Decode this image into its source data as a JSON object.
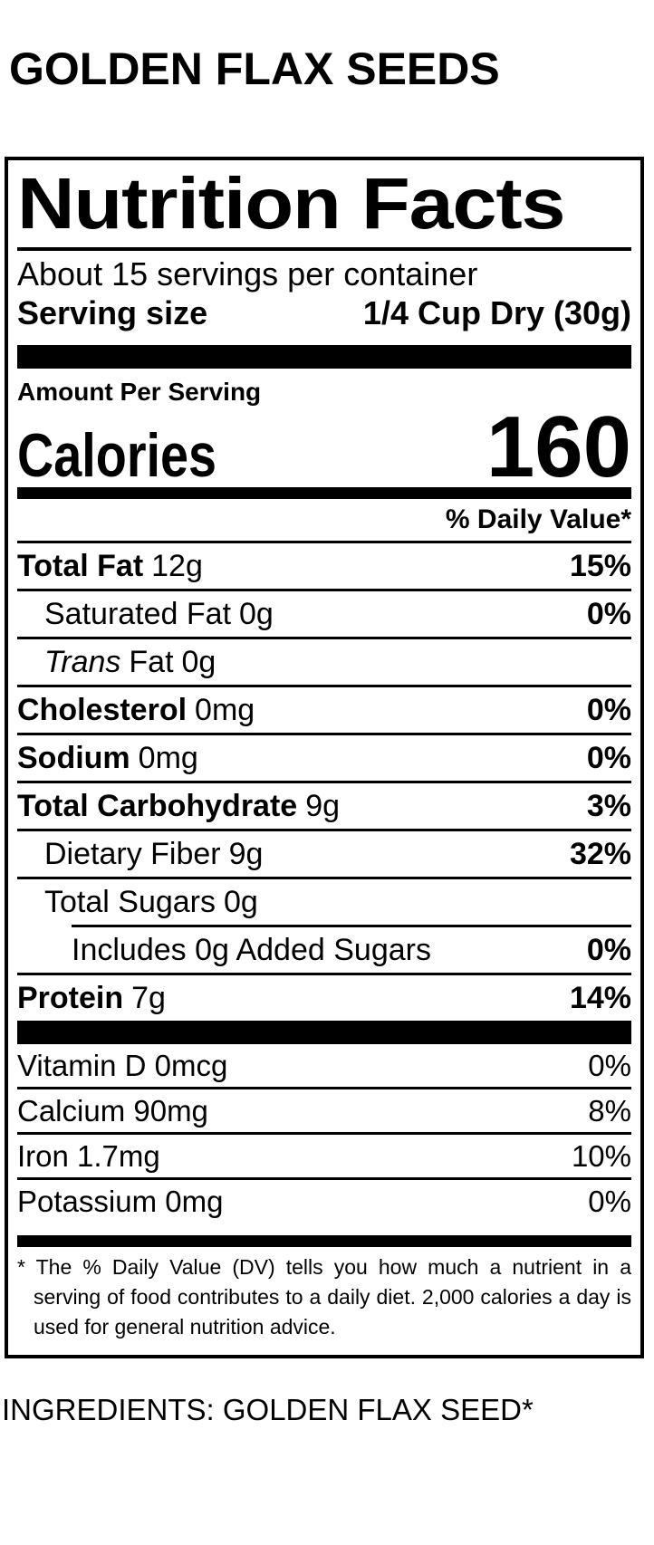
{
  "product": {
    "title": "GOLDEN FLAX SEEDS"
  },
  "label": {
    "title": "Nutrition Facts",
    "servings_per_container": "About 15 servings per container",
    "serving_size_label": "Serving size",
    "serving_size_value": "1/4 Cup Dry (30g)",
    "amount_per_serving": "Amount Per Serving",
    "calories_label": "Calories",
    "calories_value": "160",
    "daily_value_header": "% Daily Value*",
    "nutrients": [
      {
        "name": "Total Fat",
        "amount": "12g",
        "dv": "15%"
      },
      {
        "name": "Saturated Fat",
        "amount": "0g",
        "dv": "0%"
      },
      {
        "name_italic": "Trans",
        "name": "Fat",
        "amount": "0g",
        "dv": ""
      },
      {
        "name": "Cholesterol",
        "amount": "0mg",
        "dv": "0%"
      },
      {
        "name": "Sodium",
        "amount": "0mg",
        "dv": "0%"
      },
      {
        "name": "Total Carbohydrate",
        "amount": "9g",
        "dv": "3%"
      },
      {
        "name": "Dietary Fiber",
        "amount": "9g",
        "dv": "32%"
      },
      {
        "name": "Total Sugars",
        "amount": "0g",
        "dv": ""
      },
      {
        "name": "Includes 0g Added Sugars",
        "amount": "",
        "dv": "0%"
      },
      {
        "name": "Protein",
        "amount": "7g",
        "dv": "14%"
      }
    ],
    "vitamins": [
      {
        "name": "Vitamin D 0mcg",
        "dv": "0%"
      },
      {
        "name": "Calcium 90mg",
        "dv": "8%"
      },
      {
        "name": "Iron 1.7mg",
        "dv": "10%"
      },
      {
        "name": "Potassium 0mg",
        "dv": "0%"
      }
    ],
    "footnote": "* The % Daily Value (DV) tells you how much a nutrient in a serving of food contributes to a daily diet. 2,000 calories a day is used for general nutrition advice."
  },
  "ingredients": {
    "text": "INGREDIENTS: GOLDEN FLAX SEED*"
  },
  "colors": {
    "ink": "#000000",
    "background": "#ffffff"
  }
}
